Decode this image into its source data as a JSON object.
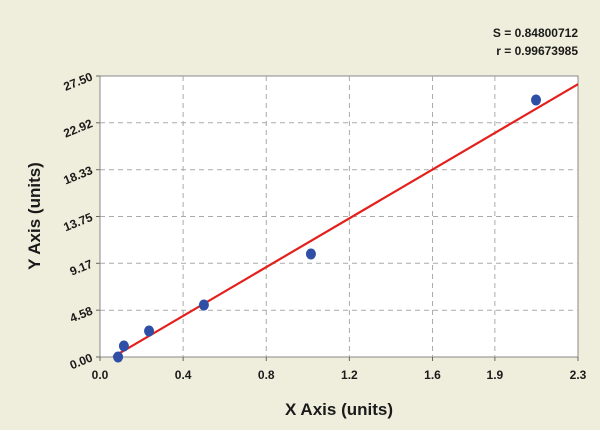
{
  "chart_data": {
    "type": "scatter",
    "annotations": [
      "S = 0.84800712",
      "r = 0.99673985"
    ],
    "x_label": "X Axis (units)",
    "y_label": "Y Axis (units)",
    "x": [
      0.087,
      0.115,
      0.236,
      0.5,
      1.015,
      2.098
    ],
    "series": [
      {
        "color": "#2f4ea6",
        "values": [
          0,
          1.08,
          2.54,
          5.09,
          10.08,
          25.15
        ]
      }
    ],
    "fit_line": {
      "color": "#e3201b",
      "x": [
        0.063,
        2.3
      ],
      "values": [
        0,
        26.7
      ]
    },
    "xlim": [
      0,
      2.3
    ],
    "xticks": [
      {
        "value": 0,
        "label": "0.0"
      },
      0.4,
      0.8,
      1.2,
      1.6,
      1.9,
      2.3
    ],
    "ylim": [
      0,
      27.5
    ],
    "yticks": [
      {
        "value": 0,
        "label": "0.00"
      },
      4.58,
      9.17,
      13.75,
      18.33,
      22.92,
      {
        "value": 27.5,
        "label": "27.50"
      }
    ],
    "grid": true
  }
}
